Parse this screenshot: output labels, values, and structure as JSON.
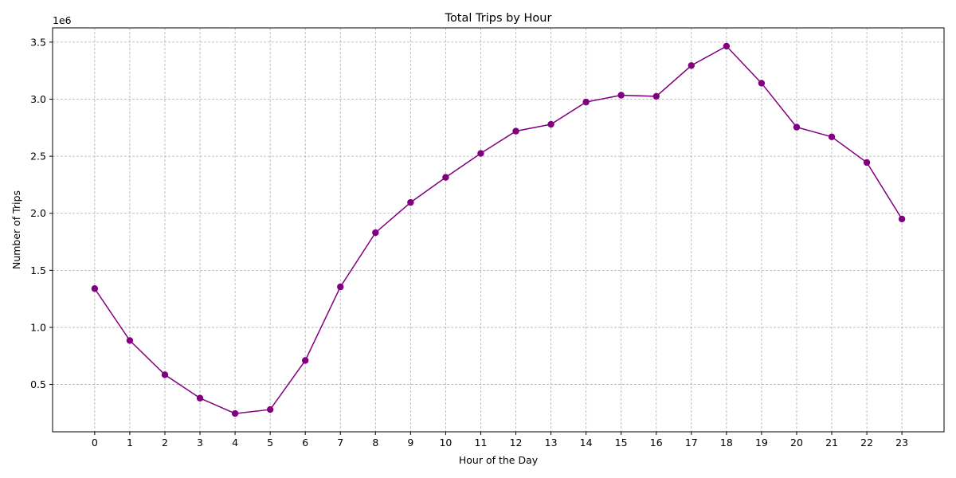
{
  "chart_data": {
    "type": "line",
    "title": "Total Trips by Hour",
    "xlabel": "Hour of the Day",
    "ylabel": "Number of Trips",
    "y_offset_label": "1e6",
    "x": [
      0,
      1,
      2,
      3,
      4,
      5,
      6,
      7,
      8,
      9,
      10,
      11,
      12,
      13,
      14,
      15,
      16,
      17,
      18,
      19,
      20,
      21,
      22,
      23
    ],
    "x_tick_labels": [
      "0",
      "1",
      "2",
      "3",
      "4",
      "5",
      "6",
      "7",
      "8",
      "9",
      "10",
      "11",
      "12",
      "13",
      "14",
      "15",
      "16",
      "17",
      "18",
      "19",
      "20",
      "21",
      "22",
      "23"
    ],
    "y_ticks": [
      0.5,
      1.0,
      1.5,
      2.0,
      2.5,
      3.0,
      3.5
    ],
    "y_tick_labels": [
      "0.5",
      "1.0",
      "1.5",
      "2.0",
      "2.5",
      "3.0",
      "3.5"
    ],
    "xlim": [
      -1.2,
      24.2
    ],
    "ylim": [
      0.085,
      3.625
    ],
    "y_unit_multiplier": 1000000,
    "series": [
      {
        "color": "#800080",
        "marker": "circle",
        "values": [
          1.34,
          0.885,
          0.585,
          0.38,
          0.245,
          0.28,
          0.71,
          1.355,
          1.83,
          2.095,
          2.315,
          2.525,
          2.72,
          2.78,
          2.975,
          3.035,
          3.025,
          3.295,
          3.465,
          3.14,
          2.755,
          2.67,
          2.445,
          1.95
        ]
      }
    ],
    "grid": true,
    "legend": "none"
  }
}
